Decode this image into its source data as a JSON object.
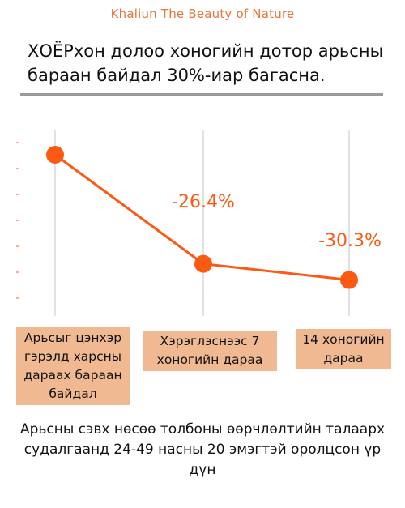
{
  "brand": "Khaliun The Beauty of Nature",
  "headline": "ХОЁРхон долоо хоногийн дотор арьсны бараан байдал 30%-иар багасна.",
  "caption": "Арьсны сэвх нөсөө толбоны өөрчлөлтийн талаарх судалгаанд 24-49 насны 20 эмэгтэй оролцсон үр дүн",
  "colors": {
    "accent": "#fa5a12",
    "brand": "#e8753a",
    "label_bg": "#f1b991",
    "grid": "#d9d9d9",
    "rule": "#9a9a9a"
  },
  "chart_data": {
    "type": "line",
    "categories": [
      "Арьсыг цэнхэр гэрэлд харсны дараах бараан байдал",
      "Хэрэглэснээс 7 хоногийн дараа",
      "14 хоногийн дараа"
    ],
    "values": [
      100,
      73.6,
      69.7
    ],
    "data_labels": [
      "",
      "-26.4%",
      "-30.3%"
    ],
    "title": "",
    "xlabel": "",
    "ylabel": "",
    "ylim": [
      60,
      110
    ],
    "grid": "vertical",
    "legend": "none"
  }
}
